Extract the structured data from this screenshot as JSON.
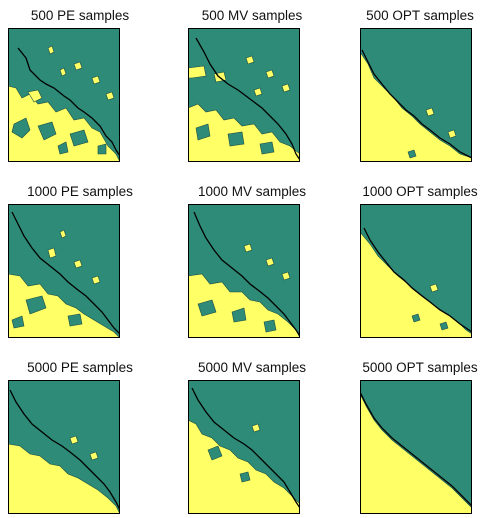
{
  "panels": [
    {
      "title": "500 PE samples"
    },
    {
      "title": "500 MV samples"
    },
    {
      "title": "500 OPT samples"
    },
    {
      "title": "1000 PE samples"
    },
    {
      "title": "1000 MV samples"
    },
    {
      "title": "1000 OPT samples"
    },
    {
      "title": "5000 PE samples"
    },
    {
      "title": "5000 MV samples"
    },
    {
      "title": "5000 OPT samples"
    }
  ],
  "colors": {
    "region_a": "#2e8b78",
    "region_b": "#ffff66",
    "boundary": "#000000",
    "frame": "#000000"
  }
}
